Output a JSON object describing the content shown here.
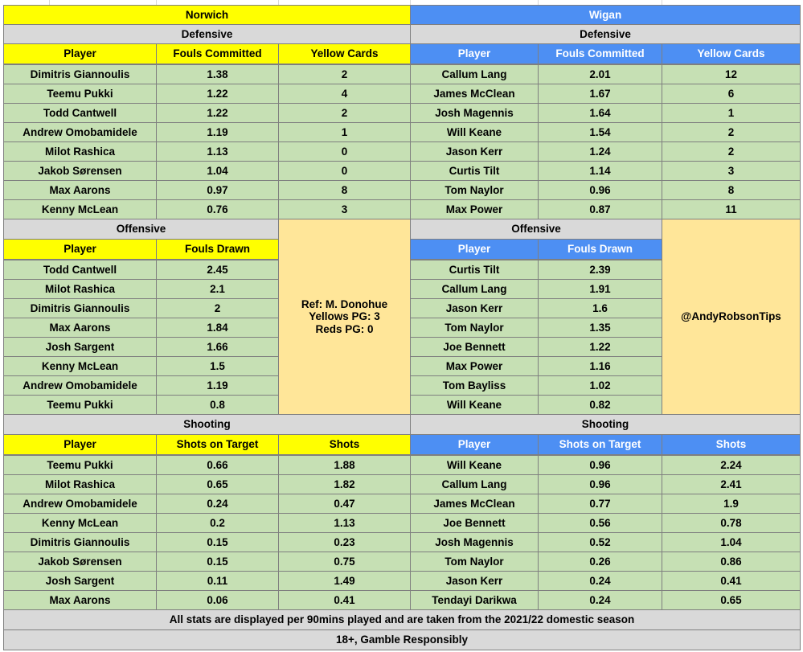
{
  "norwich": {
    "team": "Norwich",
    "defensive": {
      "title": "Defensive",
      "headers": [
        "Player",
        "Fouls Committed",
        "Yellow Cards"
      ],
      "rows": [
        [
          "Dimitris Giannoulis",
          "1.38",
          "2"
        ],
        [
          "Teemu Pukki",
          "1.22",
          "4"
        ],
        [
          "Todd Cantwell",
          "1.22",
          "2"
        ],
        [
          "Andrew Omobamidele",
          "1.19",
          "1"
        ],
        [
          "Milot Rashica",
          "1.13",
          "0"
        ],
        [
          "Jakob Sørensen",
          "1.04",
          "0"
        ],
        [
          "Max Aarons",
          "0.97",
          "8"
        ],
        [
          "Kenny McLean",
          "0.76",
          "3"
        ]
      ]
    },
    "offensive": {
      "title": "Offensive",
      "headers": [
        "Player",
        "Fouls Drawn"
      ],
      "rows": [
        [
          "Todd Cantwell",
          "2.45"
        ],
        [
          "Milot Rashica",
          "2.1"
        ],
        [
          "Dimitris Giannoulis",
          "2"
        ],
        [
          "Max Aarons",
          "1.84"
        ],
        [
          "Josh Sargent",
          "1.66"
        ],
        [
          "Kenny McLean",
          "1.5"
        ],
        [
          "Andrew Omobamidele",
          "1.19"
        ],
        [
          "Teemu Pukki",
          "0.8"
        ]
      ]
    },
    "shooting": {
      "title": "Shooting",
      "headers": [
        "Player",
        "Shots on Target",
        "Shots"
      ],
      "rows": [
        [
          "Teemu Pukki",
          "0.66",
          "1.88"
        ],
        [
          "Milot Rashica",
          "0.65",
          "1.82"
        ],
        [
          "Andrew Omobamidele",
          "0.24",
          "0.47"
        ],
        [
          "Kenny McLean",
          "0.2",
          "1.13"
        ],
        [
          "Dimitris Giannoulis",
          "0.15",
          "0.23"
        ],
        [
          "Jakob Sørensen",
          "0.15",
          "0.75"
        ],
        [
          "Josh Sargent",
          "0.11",
          "1.49"
        ],
        [
          "Max Aarons",
          "0.06",
          "0.41"
        ]
      ]
    }
  },
  "wigan": {
    "team": "Wigan",
    "defensive": {
      "title": "Defensive",
      "headers": [
        "Player",
        "Fouls Committed",
        "Yellow Cards"
      ],
      "rows": [
        [
          "Callum Lang",
          "2.01",
          "12"
        ],
        [
          "James McClean",
          "1.67",
          "6"
        ],
        [
          "Josh Magennis",
          "1.64",
          "1"
        ],
        [
          "Will Keane",
          "1.54",
          "2"
        ],
        [
          "Jason Kerr",
          "1.24",
          "2"
        ],
        [
          "Curtis Tilt",
          "1.14",
          "3"
        ],
        [
          "Tom Naylor",
          "0.96",
          "8"
        ],
        [
          "Max Power",
          "0.87",
          "11"
        ]
      ]
    },
    "offensive": {
      "title": "Offensive",
      "headers": [
        "Player",
        "Fouls Drawn"
      ],
      "rows": [
        [
          "Curtis Tilt",
          "2.39"
        ],
        [
          "Callum Lang",
          "1.91"
        ],
        [
          "Jason Kerr",
          "1.6"
        ],
        [
          "Tom Naylor",
          "1.35"
        ],
        [
          "Joe Bennett",
          "1.22"
        ],
        [
          "Max Power",
          "1.16"
        ],
        [
          "Tom Bayliss",
          "1.02"
        ],
        [
          "Will Keane",
          "0.82"
        ]
      ]
    },
    "shooting": {
      "title": "Shooting",
      "headers": [
        "Player",
        "Shots on Target",
        "Shots"
      ],
      "rows": [
        [
          "Will Keane",
          "0.96",
          "2.24"
        ],
        [
          "Callum Lang",
          "0.96",
          "2.41"
        ],
        [
          "James McClean",
          "0.77",
          "1.9"
        ],
        [
          "Joe Bennett",
          "0.56",
          "0.78"
        ],
        [
          "Josh Magennis",
          "0.52",
          "1.04"
        ],
        [
          "Tom Naylor",
          "0.26",
          "0.86"
        ],
        [
          "Jason Kerr",
          "0.24",
          "0.41"
        ],
        [
          "Tendayi Darikwa",
          "0.24",
          "0.65"
        ]
      ]
    }
  },
  "referee": {
    "lines": [
      "Ref: M. Donohue",
      "Yellows PG: 3",
      "Reds PG: 0"
    ]
  },
  "handle": "@AndyRobsonTips",
  "footer": {
    "note": "All stats are displayed per 90mins played and are taken from the 2021/22 domestic season",
    "disclaimer": "18+, Gamble Responsibly"
  },
  "colors": {
    "norwich_header": "#ffff00",
    "wigan_header": "#4d8ff3",
    "section_title": "#d9d9d9",
    "data_cell": "#c6e0b4",
    "info_box": "#ffe699"
  }
}
